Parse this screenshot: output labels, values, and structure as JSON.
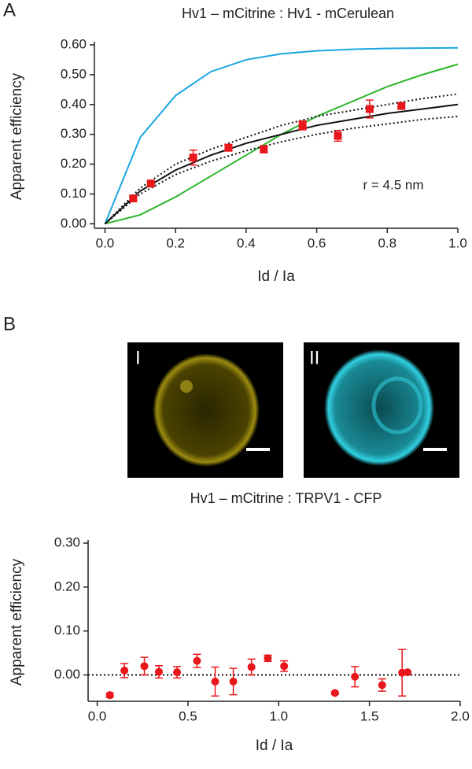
{
  "panels": [
    "A",
    "B"
  ],
  "images": [
    {
      "label": "I"
    },
    {
      "label": "II"
    }
  ],
  "chart_data": [
    {
      "type": "scatter",
      "title": "Hv1 – mCitrine : Hv1 - mCerulean",
      "x_label": "Id / Ia",
      "y_label": "Apparent efficiency",
      "annotation": "r = 4.5 nm",
      "xlim": [
        -0.03,
        1.0
      ],
      "ylim": [
        -0.015,
        0.6
      ],
      "xticks": [
        {
          "value": 0,
          "label": "0.0"
        },
        0.2,
        0.4,
        0.6,
        0.8,
        {
          "value": 1,
          "label": "1.0"
        }
      ],
      "yticks": [
        {
          "value": 0,
          "label": "0.00"
        },
        {
          "value": 0.1,
          "label": "0.10"
        },
        {
          "value": 0.2,
          "label": "0.20"
        },
        {
          "value": 0.3,
          "label": "0.30"
        },
        {
          "value": 0.4,
          "label": "0.40"
        },
        {
          "value": 0.5,
          "label": "0.50"
        },
        {
          "value": 0.6,
          "label": "0.60"
        }
      ],
      "series": [
        {
          "kind": "line",
          "style": "solid",
          "color": "#1aa7e0",
          "x": [
            0,
            0.1,
            0.2,
            0.3,
            0.4,
            0.5,
            0.6,
            0.7,
            0.8,
            0.9,
            1.0
          ],
          "values": [
            0,
            0.29,
            0.43,
            0.51,
            0.55,
            0.57,
            0.58,
            0.585,
            0.588,
            0.589,
            0.59
          ]
        },
        {
          "kind": "line",
          "style": "solid",
          "color": "#2cb52c",
          "x": [
            0,
            0.1,
            0.2,
            0.3,
            0.4,
            0.5,
            0.6,
            0.7,
            0.8,
            0.9,
            1.0
          ],
          "values": [
            0,
            0.03,
            0.09,
            0.16,
            0.23,
            0.3,
            0.36,
            0.41,
            0.46,
            0.5,
            0.535
          ]
        },
        {
          "kind": "line",
          "style": "dotted",
          "color": "#111111",
          "x": [
            0,
            0.1,
            0.2,
            0.3,
            0.4,
            0.5,
            0.6,
            0.7,
            0.8,
            0.9,
            1.0
          ],
          "values": [
            0,
            0.12,
            0.2,
            0.25,
            0.29,
            0.33,
            0.36,
            0.38,
            0.4,
            0.42,
            0.435
          ]
        },
        {
          "kind": "line",
          "style": "dotted",
          "color": "#111111",
          "x": [
            0,
            0.1,
            0.2,
            0.3,
            0.4,
            0.5,
            0.6,
            0.7,
            0.8,
            0.9,
            1.0
          ],
          "values": [
            0,
            0.1,
            0.165,
            0.21,
            0.245,
            0.275,
            0.3,
            0.32,
            0.335,
            0.35,
            0.36
          ]
        },
        {
          "kind": "line",
          "style": "solid",
          "color": "#111111",
          "x": [
            0,
            0.1,
            0.2,
            0.3,
            0.4,
            0.5,
            0.6,
            0.7,
            0.8,
            0.9,
            1.0
          ],
          "values": [
            0,
            0.11,
            0.18,
            0.23,
            0.27,
            0.3,
            0.33,
            0.35,
            0.37,
            0.385,
            0.4
          ]
        },
        {
          "kind": "points",
          "marker": "square",
          "color": "#e8171b",
          "x": [
            0.08,
            0.13,
            0.25,
            0.35,
            0.45,
            0.56,
            0.66,
            0.75,
            0.84
          ],
          "values": [
            0.085,
            0.135,
            0.222,
            0.255,
            0.25,
            0.33,
            0.295,
            0.385,
            0.395
          ],
          "errors": [
            0.01,
            0.008,
            0.025,
            0.01,
            0.012,
            0.015,
            0.018,
            0.03,
            0.008
          ]
        }
      ]
    },
    {
      "type": "scatter",
      "title": "Hv1 – mCitrine : TRPV1 - CFP",
      "x_label": "Id / Ia",
      "y_label": "Apparent efficiency",
      "reference_line": 0,
      "xlim": [
        -0.05,
        2.0
      ],
      "ylim": [
        -0.06,
        0.3
      ],
      "xticks": [
        {
          "value": 0,
          "label": "0.0"
        },
        0.5,
        {
          "value": 1,
          "label": "1.0"
        },
        1.5,
        {
          "value": 2,
          "label": "2.0"
        }
      ],
      "yticks": [
        {
          "value": 0,
          "label": "0.00"
        },
        {
          "value": 0.1,
          "label": "0.10"
        },
        {
          "value": 0.2,
          "label": "0.20"
        },
        {
          "value": 0.3,
          "label": "0.30"
        }
      ],
      "series": [
        {
          "kind": "points",
          "marker": "circle",
          "color": "#e8171b",
          "x": [
            0.07,
            0.15,
            0.26,
            0.34,
            0.44,
            0.55,
            0.65,
            0.75,
            0.85,
            0.94,
            1.03,
            1.31,
            1.42,
            1.57,
            1.68,
            1.71
          ],
          "values": [
            -0.046,
            0.01,
            0.02,
            0.007,
            0.006,
            0.032,
            -0.015,
            -0.015,
            0.018,
            0.038,
            0.02,
            -0.041,
            -0.004,
            -0.023,
            0.005,
            0.006
          ],
          "errors": [
            0.005,
            0.016,
            0.02,
            0.014,
            0.013,
            0.015,
            0.033,
            0.03,
            0.018,
            0.007,
            0.012,
            0.003,
            0.023,
            0.014,
            0.053,
            0.003
          ]
        }
      ]
    }
  ]
}
